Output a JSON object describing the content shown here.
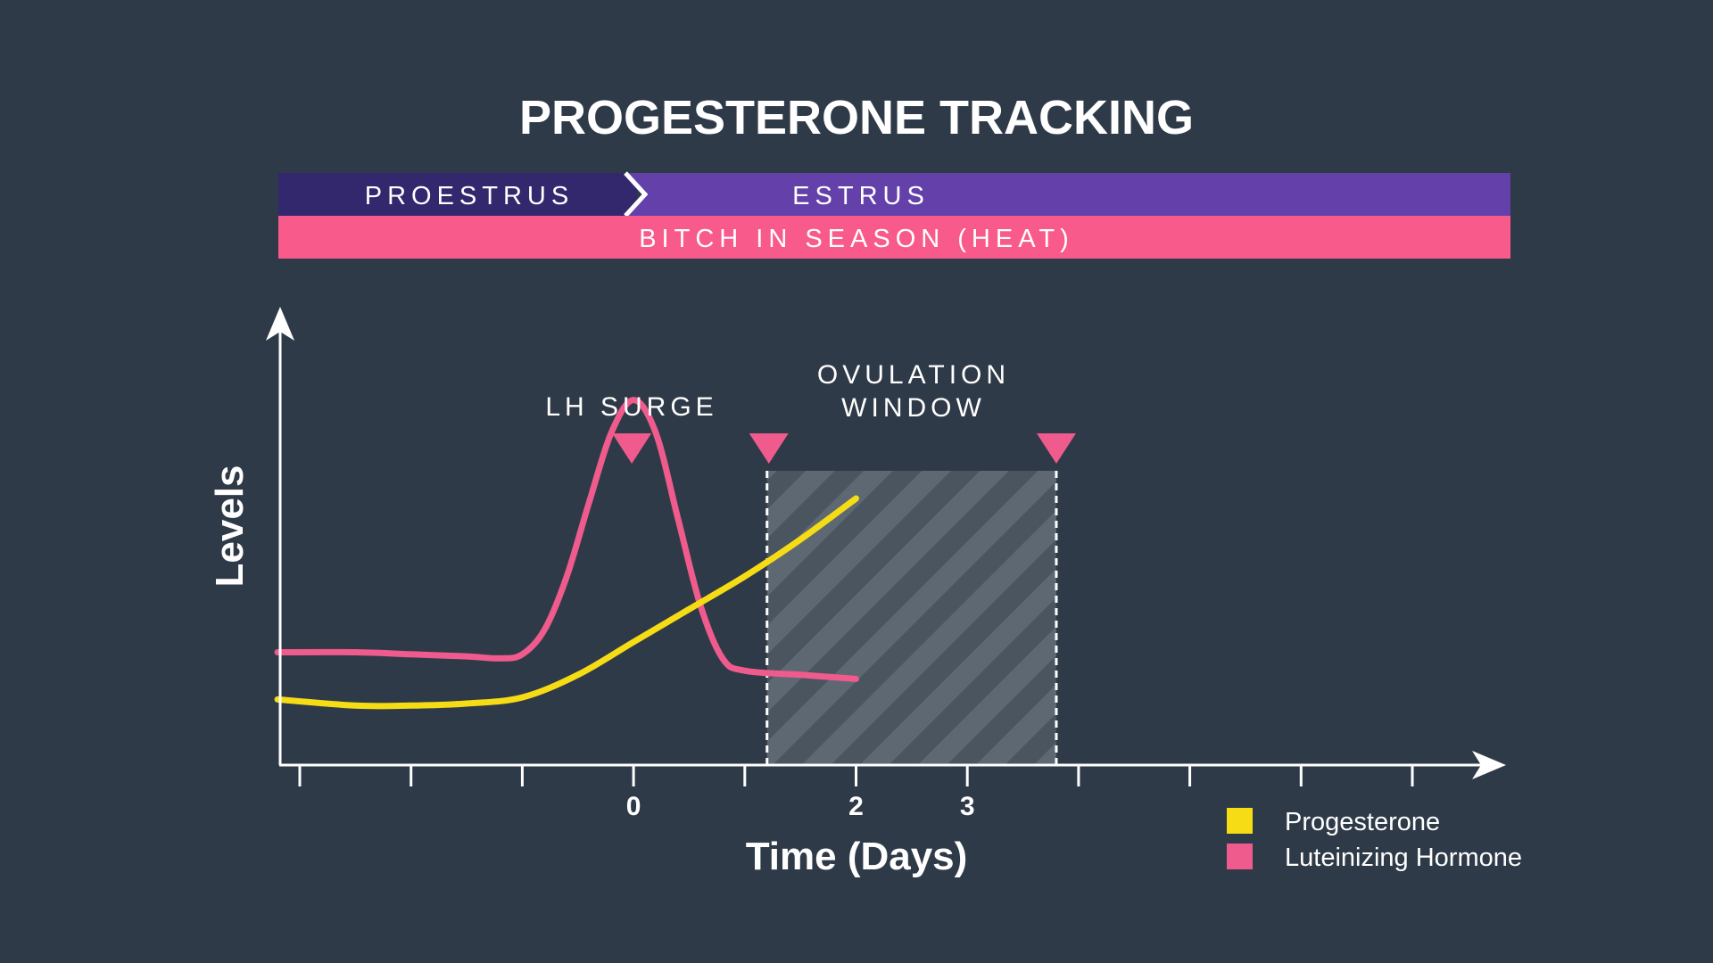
{
  "colors": {
    "background": "#2f3a48",
    "proestrus": "#33286e",
    "estrus": "#6340aa",
    "season": "#f85a8c",
    "progesterone": "#f5dc14",
    "lh": "#ef5b8c",
    "marker": "#ef5b8c",
    "axis": "#ffffff",
    "window_fill": "#4a5560",
    "window_stripe": "#5f6973"
  },
  "title": "PROGESTERONE TRACKING",
  "phases": {
    "proestrus": "PROESTRUS",
    "estrus": "ESTRUS",
    "season": "BITCH IN SEASON (HEAT)"
  },
  "chart_data": {
    "type": "line",
    "title": "PROGESTERONE TRACKING",
    "xlabel": "Time (Days)",
    "ylabel": "Levels",
    "xlim": [
      -3,
      7
    ],
    "ylim": [
      0,
      10
    ],
    "x_ticks": [
      -3,
      -2,
      -1,
      0,
      1,
      2,
      3,
      4,
      5,
      6,
      7
    ],
    "x_tick_labels": [
      "",
      "",
      "",
      "0",
      "",
      "2",
      "3",
      "",
      "",
      "",
      ""
    ],
    "grid": false,
    "legend": "bottom-right",
    "series": [
      {
        "name": "Progesterone",
        "color_key": "progesterone",
        "x": [
          -3.2,
          -2.5,
          -2.0,
          -1.5,
          -1.0,
          -0.5,
          0.0,
          0.5,
          1.0,
          1.5,
          2.0
        ],
        "y": [
          1.6,
          1.45,
          1.45,
          1.5,
          1.65,
          2.2,
          3.0,
          3.8,
          4.6,
          5.5,
          6.5
        ]
      },
      {
        "name": "Luteinizing Hormone",
        "color_key": "lh",
        "x": [
          -3.2,
          -2.5,
          -2.0,
          -1.5,
          -1.2,
          -1.0,
          -0.8,
          -0.6,
          -0.4,
          -0.2,
          0.0,
          0.2,
          0.4,
          0.6,
          0.8,
          1.0,
          1.5,
          2.0
        ],
        "y": [
          2.75,
          2.75,
          2.7,
          2.65,
          2.6,
          2.7,
          3.3,
          4.6,
          6.4,
          8.1,
          8.9,
          8.1,
          6.0,
          3.9,
          2.6,
          2.3,
          2.2,
          2.1
        ]
      }
    ],
    "annotations": [
      {
        "label": "LH SURGE",
        "marker_x": 0
      },
      {
        "label": "OVULATION WINDOW",
        "label_lines": [
          "OVULATION",
          "WINDOW"
        ],
        "window_x": [
          1.2,
          3.8
        ]
      }
    ]
  }
}
